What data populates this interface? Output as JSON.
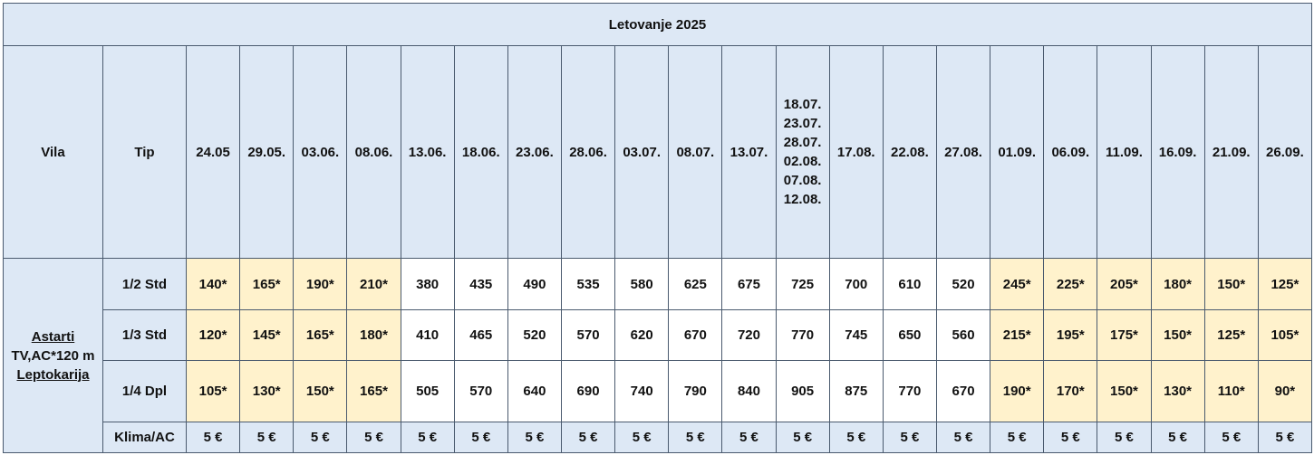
{
  "title": "Letovanje 2025",
  "header": {
    "vila": "Vila",
    "tip": "Tip",
    "dates": [
      "24.05",
      "29.05.",
      "03.06.",
      "08.06.",
      "13.06.",
      "18.06.",
      "23.06.",
      "28.06.",
      "03.07.",
      "08.07.",
      "13.07.",
      "18.07.\n23.07.\n28.07.\n02.08.\n07.08.\n12.08.",
      "17.08.",
      "22.08.",
      "27.08.",
      "01.09.",
      "06.09.",
      "11.09.",
      "16.09.",
      "21.09.",
      "26.09."
    ]
  },
  "villa": {
    "name": "Astarti",
    "details": "TV,AC*120 m",
    "location": "Leptokarija"
  },
  "rows": [
    {
      "tip": "1/2 Std",
      "values": [
        "140*",
        "165*",
        "190*",
        "210*",
        "380",
        "435",
        "490",
        "535",
        "580",
        "625",
        "675",
        "725",
        "700",
        "610",
        "520",
        "245*",
        "225*",
        "205*",
        "180*",
        "150*",
        "125*"
      ]
    },
    {
      "tip": "1/3 Std",
      "values": [
        "120*",
        "145*",
        "165*",
        "180*",
        "410",
        "465",
        "520",
        "570",
        "620",
        "670",
        "720",
        "770",
        "745",
        "650",
        "560",
        "215*",
        "195*",
        "175*",
        "150*",
        "125*",
        "105*"
      ]
    },
    {
      "tip": "1/4 Dpl",
      "values": [
        "105*",
        "130*",
        "150*",
        "165*",
        "505",
        "570",
        "640",
        "690",
        "740",
        "790",
        "840",
        "905",
        "875",
        "770",
        "670",
        "190*",
        "170*",
        "150*",
        "130*",
        "110*",
        "90*"
      ]
    },
    {
      "tip": "Klima/AC",
      "values": [
        "5 €",
        "5 €",
        "5 €",
        "5 €",
        "5 €",
        "5 €",
        "5 €",
        "5 €",
        "5 €",
        "5 €",
        "5 €",
        "5 €",
        "5 €",
        "5 €",
        "5 €",
        "5 €",
        "5 €",
        "5 €",
        "5 €",
        "5 €",
        "5 €"
      ]
    }
  ]
}
